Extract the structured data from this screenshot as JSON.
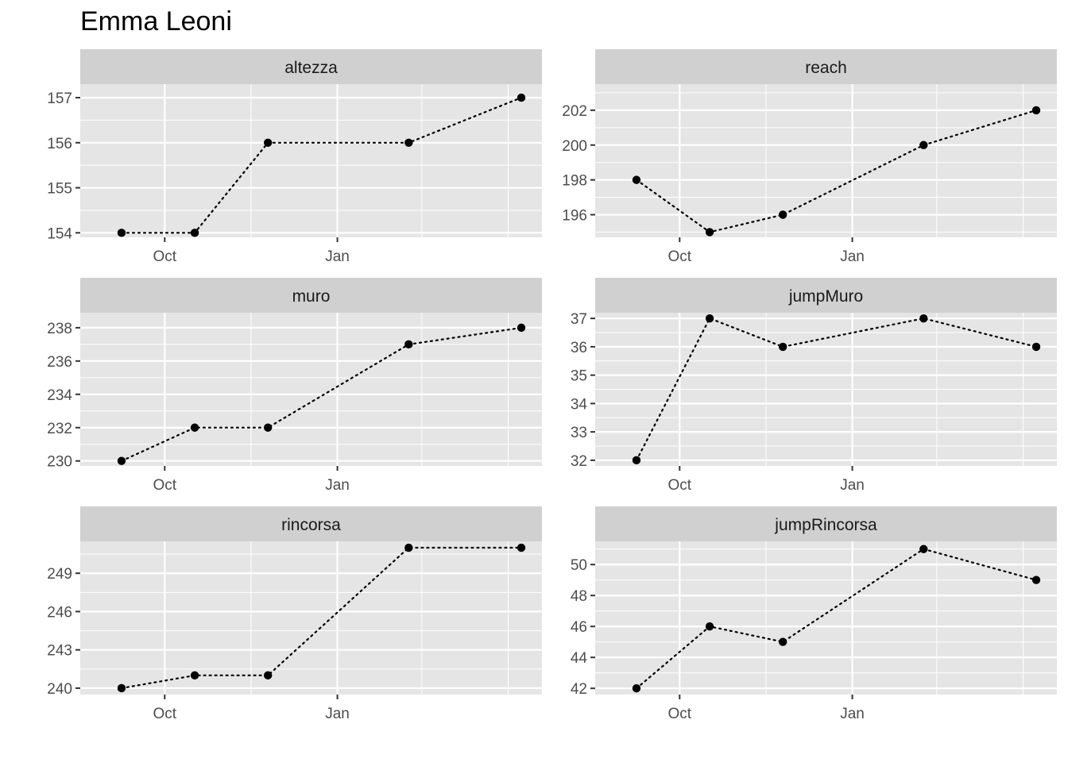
{
  "chart_title": "Emma Leoni",
  "colors": {
    "panel_bg": "#e5e5e5",
    "strip_bg": "#d0d0d0",
    "grid": "#ffffff",
    "line": "#000000",
    "point": "#000000",
    "tick_text": "#4d4d4d",
    "strip_text": "#1a1a1a"
  },
  "chart_data": [
    {
      "type": "line",
      "panel": "altezza",
      "x_ticks": [
        "Oct",
        "Jan"
      ],
      "x": [
        "2023-09-08",
        "2023-10-17",
        "2023-11-25",
        "2024-02-08",
        "2024-04-08"
      ],
      "values": [
        154,
        154,
        156,
        156,
        157
      ],
      "yticks": [
        154,
        155,
        156,
        157
      ],
      "ylim": [
        153.9,
        157.3
      ],
      "grid": true,
      "line_style": "dotted"
    },
    {
      "type": "line",
      "panel": "reach",
      "x_ticks": [
        "Oct",
        "Jan"
      ],
      "x": [
        "2023-09-08",
        "2023-10-17",
        "2023-11-25",
        "2024-02-08",
        "2024-04-08"
      ],
      "values": [
        198,
        195,
        196,
        200,
        202
      ],
      "yticks": [
        196,
        198,
        200,
        202
      ],
      "ylim": [
        194.7,
        203.5
      ],
      "grid": true,
      "line_style": "dotted"
    },
    {
      "type": "line",
      "panel": "muro",
      "x_ticks": [
        "Oct",
        "Jan"
      ],
      "x": [
        "2023-09-08",
        "2023-10-17",
        "2023-11-25",
        "2024-02-08",
        "2024-04-08"
      ],
      "values": [
        230,
        232,
        232,
        237,
        238
      ],
      "yticks": [
        230,
        232,
        234,
        236,
        238
      ],
      "ylim": [
        229.7,
        238.9
      ],
      "grid": true,
      "line_style": "dotted"
    },
    {
      "type": "line",
      "panel": "jumpMuro",
      "x_ticks": [
        "Oct",
        "Jan"
      ],
      "x": [
        "2023-09-08",
        "2023-10-17",
        "2023-11-25",
        "2024-02-08",
        "2024-04-08"
      ],
      "values": [
        32,
        37,
        36,
        37,
        36
      ],
      "yticks": [
        32,
        33,
        34,
        35,
        36,
        37
      ],
      "ylim": [
        31.8,
        37.2
      ],
      "grid": true,
      "line_style": "dotted"
    },
    {
      "type": "line",
      "panel": "rincorsa",
      "x_ticks": [
        "Oct",
        "Jan"
      ],
      "x": [
        "2023-09-08",
        "2023-10-17",
        "2023-11-25",
        "2024-02-08",
        "2024-04-08"
      ],
      "values": [
        240,
        241,
        241,
        251,
        251
      ],
      "yticks": [
        240,
        243,
        246,
        249
      ],
      "ylim": [
        239.5,
        251.5
      ],
      "grid": true,
      "line_style": "dotted"
    },
    {
      "type": "line",
      "panel": "jumpRincorsa",
      "x_ticks": [
        "Oct",
        "Jan"
      ],
      "x": [
        "2023-09-08",
        "2023-10-17",
        "2023-11-25",
        "2024-02-08",
        "2024-04-08"
      ],
      "values": [
        42,
        46,
        45,
        51,
        49
      ],
      "yticks": [
        42,
        44,
        46,
        48,
        50
      ],
      "ylim": [
        41.6,
        51.5
      ],
      "grid": true,
      "line_style": "dotted"
    }
  ]
}
